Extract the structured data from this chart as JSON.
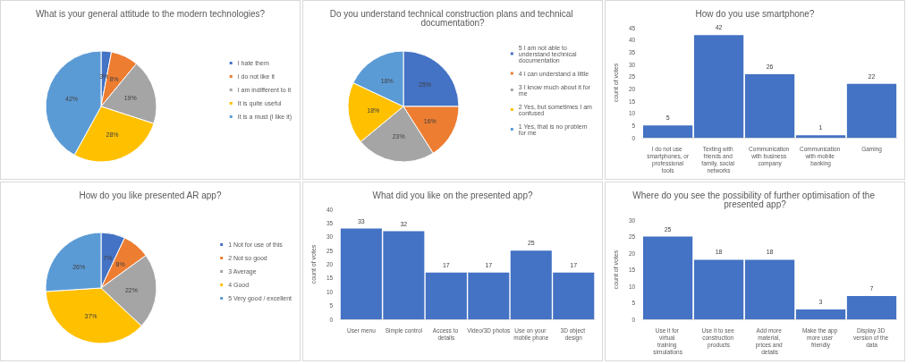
{
  "chart_data": [
    {
      "type": "pie",
      "title": "What is your general attitude to the modern technologies?",
      "categories": [
        "I hate them",
        "I do not like it",
        "I am indifferent to it",
        "It is quite useful",
        "It is a must (I like it)"
      ],
      "values": [
        3,
        8,
        19,
        28,
        42
      ],
      "value_labels": [
        "3%",
        "8%",
        "19%",
        "28%",
        "42%"
      ],
      "colors": [
        "#4472c4",
        "#ed7d31",
        "#a5a5a5",
        "#ffc000",
        "#5b9bd5"
      ],
      "legend": "right"
    },
    {
      "type": "pie",
      "title": "Do you understand technical construction plans and technical documentation?",
      "categories": [
        "5 I am not able to understand technical documentation",
        "4 I can understand a little",
        "3 I know much about it for me",
        "2 Yes, but sometimes I am confused",
        "1 Yes, that is no problem for me"
      ],
      "values": [
        25,
        16,
        23,
        18,
        18
      ],
      "value_labels": [
        "25%",
        "16%",
        "23%",
        "18%",
        "18%"
      ],
      "colors": [
        "#4472c4",
        "#ed7d31",
        "#a5a5a5",
        "#ffc000",
        "#5b9bd5"
      ],
      "legend": "right"
    },
    {
      "type": "bar",
      "title": "How do you use smartphone?",
      "ylabel": "count of votes",
      "categories": [
        "I do not use smartphones, or professional tools",
        "Texting with friends and family, social networks",
        "Communication with business company",
        "Communication with mobile banking",
        "Gaming"
      ],
      "values": [
        5,
        42,
        26,
        1,
        22
      ],
      "value_labels": [
        "5",
        "42",
        "26",
        "1",
        "22"
      ],
      "color": "#4472c4",
      "ylim": [
        0,
        45
      ],
      "yticks": [
        0,
        5,
        10,
        15,
        20,
        25,
        30,
        35,
        40,
        45
      ]
    },
    {
      "type": "pie",
      "title": "How do you like presented AR app?",
      "categories": [
        "1 Not for use of this",
        "2 Not so good",
        "3 Average",
        "4 Good",
        "5 Very good / excellent"
      ],
      "values": [
        7,
        8,
        22,
        37,
        26
      ],
      "value_labels": [
        "7%",
        "8%",
        "22%",
        "37%",
        "26%"
      ],
      "colors": [
        "#4472c4",
        "#ed7d31",
        "#a5a5a5",
        "#ffc000",
        "#5b9bd5"
      ],
      "legend": "right"
    },
    {
      "type": "bar",
      "title": "What did you like on the presented app?",
      "ylabel": "count of votes",
      "categories": [
        "User menu",
        "Simple control",
        "Access to details",
        "Video/3D photos",
        "Use on your mobile phone",
        "3D object design"
      ],
      "values": [
        33,
        32,
        17,
        17,
        25,
        17
      ],
      "value_labels": [
        "33",
        "32",
        "17",
        "17",
        "25",
        "17"
      ],
      "color": "#4472c4",
      "ylim": [
        0,
        40
      ],
      "yticks": [
        0,
        5,
        10,
        15,
        20,
        25,
        30,
        35,
        40
      ]
    },
    {
      "type": "bar",
      "title": "Where do you see the possibility of further optimisation of the presented app?",
      "ylabel": "count of votes",
      "categories": [
        "Use it for virtual training simulations",
        "Use it to see construction products",
        "Add more material, prices and details",
        "Make the app more user friendly",
        "Display 3D version of the data"
      ],
      "values": [
        25,
        18,
        18,
        3,
        7
      ],
      "value_labels": [
        "25",
        "18",
        "18",
        "3",
        "7"
      ],
      "color": "#4472c4",
      "ylim": [
        0,
        30
      ],
      "yticks": [
        0,
        5,
        10,
        15,
        20,
        25,
        30
      ]
    }
  ]
}
